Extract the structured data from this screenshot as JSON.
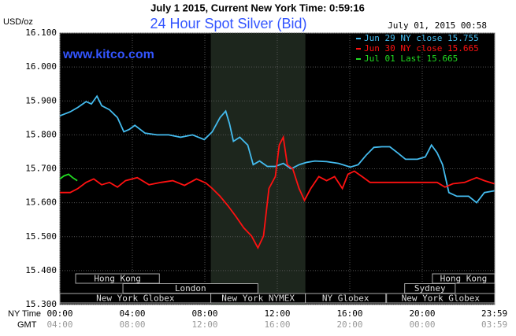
{
  "chart_data": {
    "type": "line",
    "header": "July 1 2015, Current New York Time: 0:59:16",
    "title": "24 Hour Spot Silver (Bid)",
    "watermark": "www.kitco.com",
    "date_stamp": "July 01, 2015 00:58",
    "y_unit": "USD/oz",
    "x_label": "NY Time",
    "x2_label": "GMT",
    "xlim": [
      0,
      24
    ],
    "ylim": [
      15.3,
      16.1
    ],
    "xticks": [
      {
        "value": 0,
        "label": "00:00"
      },
      {
        "value": 4,
        "label": "04:00"
      },
      {
        "value": 8,
        "label": "08:00"
      },
      {
        "value": 12,
        "label": "12:00"
      },
      {
        "value": 16,
        "label": "16:00"
      },
      {
        "value": 20,
        "label": "20:00"
      },
      {
        "value": 23.98,
        "label": "23:59"
      }
    ],
    "gmt_labels": [
      "04:00",
      "08:00",
      "12:00",
      "16:00",
      "20:00",
      "00:00",
      "03:59"
    ],
    "yticks": [
      {
        "value": 15.3,
        "label": "15.300"
      },
      {
        "value": 15.4,
        "label": "15.400"
      },
      {
        "value": 15.5,
        "label": "15.500"
      },
      {
        "value": 15.6,
        "label": "15.600"
      },
      {
        "value": 15.7,
        "label": "15.700"
      },
      {
        "value": 15.8,
        "label": "15.800"
      },
      {
        "value": 15.9,
        "label": "15.900"
      },
      {
        "value": 16.0,
        "label": "16.000"
      },
      {
        "value": 16.1,
        "label": "16.100"
      }
    ],
    "grid": true,
    "shaded_range": [
      8.33,
      13.55
    ],
    "sessions": [
      [
        {
          "label": "Hong Kong",
          "start": 0.87,
          "end": 5.49
        },
        {
          "label": "Hong Kong",
          "start": 20.56,
          "end": 24
        }
      ],
      [
        {
          "label": "London",
          "start": 3.48,
          "end": 10.93
        },
        {
          "label": "Sydney",
          "start": 19.03,
          "end": 21.82
        }
      ],
      [
        {
          "label": "New York Globex",
          "start": 0,
          "end": 8.33
        },
        {
          "label": "New York NYMEX",
          "start": 8.33,
          "end": 13.55
        },
        {
          "label": "NY Globex",
          "start": 13.55,
          "end": 17.99
        },
        {
          "label": "New York Globex",
          "start": 18.03,
          "end": 24
        }
      ]
    ],
    "series": [
      {
        "name": "Jun 29 NY close 15.755",
        "color": "#44bbee",
        "x": [
          0,
          0.57,
          1.0,
          1.45,
          1.74,
          2.05,
          2.31,
          2.74,
          3.18,
          3.53,
          3.83,
          4.14,
          4.7,
          5.36,
          6.01,
          6.66,
          7.32,
          7.97,
          8.41,
          8.84,
          9.15,
          9.36,
          9.58,
          9.93,
          10.37,
          10.67,
          11.02,
          11.45,
          11.89,
          12.33,
          12.76,
          13.2,
          13.63,
          14.07,
          14.72,
          15.38,
          16.03,
          16.46,
          16.9,
          17.33,
          17.77,
          18.21,
          18.64,
          19.08,
          19.73,
          20.17,
          20.51,
          20.82,
          21.12,
          21.47,
          21.91,
          22.56,
          23.0,
          23.43,
          23.98
        ],
        "values": [
          15.856,
          15.868,
          15.881,
          15.898,
          15.891,
          15.914,
          15.886,
          15.874,
          15.851,
          15.809,
          15.816,
          15.828,
          15.805,
          15.8,
          15.8,
          15.793,
          15.8,
          15.786,
          15.809,
          15.851,
          15.87,
          15.833,
          15.781,
          15.793,
          15.77,
          15.712,
          15.723,
          15.707,
          15.707,
          15.716,
          15.7,
          15.712,
          15.719,
          15.723,
          15.721,
          15.716,
          15.705,
          15.712,
          15.74,
          15.763,
          15.765,
          15.765,
          15.747,
          15.728,
          15.728,
          15.735,
          15.77,
          15.747,
          15.712,
          15.63,
          15.619,
          15.619,
          15.6,
          15.63,
          15.635
        ]
      },
      {
        "name": "Jun 30 NY close 15.665",
        "color": "#ff1111",
        "x": [
          0,
          0.57,
          1.0,
          1.45,
          1.87,
          2.31,
          2.74,
          3.18,
          3.62,
          4.27,
          4.92,
          5.58,
          6.23,
          6.88,
          7.54,
          8.06,
          8.41,
          8.84,
          9.28,
          9.71,
          10.15,
          10.58,
          10.93,
          11.24,
          11.54,
          11.89,
          12.11,
          12.33,
          12.55,
          12.85,
          13.2,
          13.5,
          13.85,
          14.29,
          14.72,
          15.16,
          15.59,
          15.9,
          16.25,
          16.68,
          17.12,
          18.0,
          18.86,
          19.73,
          20.82,
          21.25,
          21.69,
          22.34,
          23.0,
          23.43,
          23.98
        ],
        "values": [
          15.63,
          15.63,
          15.642,
          15.66,
          15.67,
          15.653,
          15.66,
          15.646,
          15.665,
          15.674,
          15.653,
          15.66,
          15.665,
          15.651,
          15.67,
          15.658,
          15.642,
          15.619,
          15.591,
          15.56,
          15.526,
          15.502,
          15.467,
          15.502,
          15.642,
          15.677,
          15.77,
          15.793,
          15.712,
          15.7,
          15.642,
          15.607,
          15.642,
          15.677,
          15.665,
          15.677,
          15.642,
          15.684,
          15.693,
          15.677,
          15.66,
          15.66,
          15.66,
          15.66,
          15.66,
          15.646,
          15.656,
          15.66,
          15.674,
          15.665,
          15.656
        ]
      },
      {
        "name": "Jul 01 Last 15.665",
        "color": "#22dd22",
        "x": [
          0,
          0.22,
          0.48,
          0.7,
          0.96
        ],
        "values": [
          15.67,
          15.679,
          15.684,
          15.674,
          15.665
        ]
      }
    ]
  }
}
